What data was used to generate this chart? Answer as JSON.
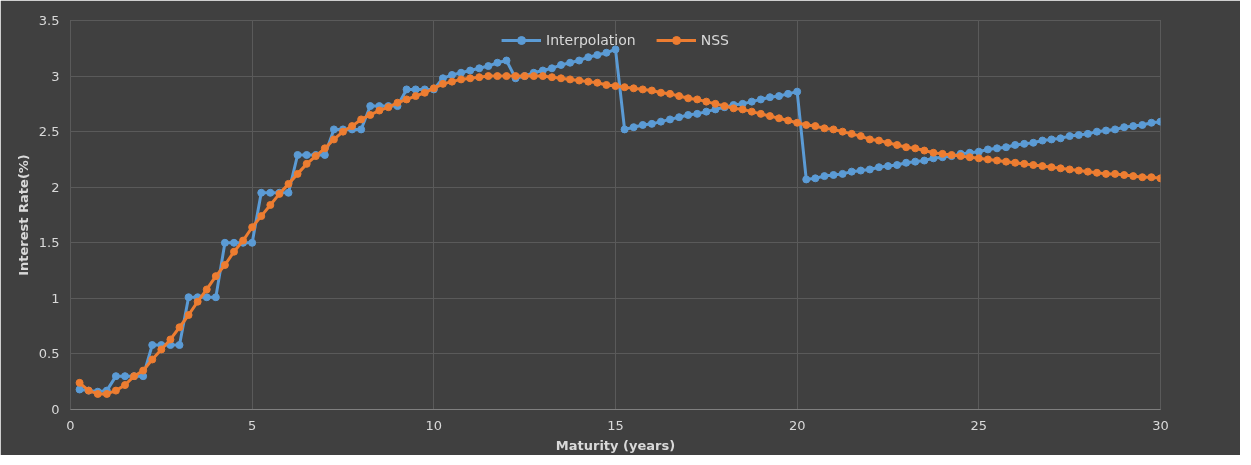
{
  "chart_data": {
    "type": "line",
    "xlabel": "Maturity (years)",
    "ylabel": "Interest Rate(%)",
    "x": [
      0.25,
      0.5,
      0.75,
      1,
      1.25,
      1.5,
      1.75,
      2,
      2.25,
      2.5,
      2.75,
      3,
      3.25,
      3.5,
      3.75,
      4,
      4.25,
      4.5,
      4.75,
      5,
      5.25,
      5.5,
      5.75,
      6,
      6.25,
      6.5,
      6.75,
      7,
      7.25,
      7.5,
      7.75,
      8,
      8.25,
      8.5,
      8.75,
      9,
      9.25,
      9.5,
      9.75,
      10,
      10.25,
      10.5,
      10.75,
      11,
      11.25,
      11.5,
      11.75,
      12,
      12.25,
      12.5,
      12.75,
      13,
      13.25,
      13.5,
      13.75,
      14,
      14.25,
      14.5,
      14.75,
      15,
      15.25,
      15.5,
      15.75,
      16,
      16.25,
      16.5,
      16.75,
      17,
      17.25,
      17.5,
      17.75,
      18,
      18.25,
      18.5,
      18.75,
      19,
      19.25,
      19.5,
      19.75,
      20,
      20.25,
      20.5,
      20.75,
      21,
      21.25,
      21.5,
      21.75,
      22,
      22.25,
      22.5,
      22.75,
      23,
      23.25,
      23.5,
      23.75,
      24,
      24.25,
      24.5,
      24.75,
      25,
      25.25,
      25.5,
      25.75,
      26,
      26.25,
      26.5,
      26.75,
      27,
      27.25,
      27.5,
      27.75,
      28,
      28.25,
      28.5,
      28.75,
      29,
      29.25,
      29.5,
      29.75,
      30
    ],
    "series": [
      {
        "name": "Interpolation",
        "color": "#5b9bd5",
        "values": [
          0.18,
          0.17,
          0.16,
          0.17,
          0.3,
          0.3,
          0.3,
          0.3,
          0.58,
          0.58,
          0.58,
          0.58,
          1.01,
          1.01,
          1.01,
          1.01,
          1.5,
          1.5,
          1.5,
          1.5,
          1.95,
          1.95,
          1.95,
          1.95,
          2.29,
          2.29,
          2.29,
          2.29,
          2.52,
          2.52,
          2.52,
          2.52,
          2.73,
          2.73,
          2.73,
          2.73,
          2.88,
          2.88,
          2.88,
          2.88,
          2.98,
          3.01,
          3.03,
          3.05,
          3.07,
          3.09,
          3.12,
          3.14,
          2.98,
          3.0,
          3.03,
          3.05,
          3.07,
          3.1,
          3.12,
          3.14,
          3.17,
          3.19,
          3.21,
          3.24,
          2.52,
          2.54,
          2.56,
          2.57,
          2.59,
          2.61,
          2.63,
          2.65,
          2.66,
          2.68,
          2.7,
          2.72,
          2.74,
          2.75,
          2.77,
          2.79,
          2.81,
          2.82,
          2.84,
          2.86,
          2.07,
          2.08,
          2.1,
          2.11,
          2.12,
          2.14,
          2.15,
          2.16,
          2.18,
          2.19,
          2.2,
          2.22,
          2.23,
          2.24,
          2.26,
          2.27,
          2.28,
          2.3,
          2.31,
          2.32,
          2.34,
          2.35,
          2.36,
          2.38,
          2.39,
          2.4,
          2.42,
          2.43,
          2.44,
          2.46,
          2.47,
          2.48,
          2.5,
          2.51,
          2.52,
          2.54,
          2.55,
          2.56,
          2.58,
          2.59
        ]
      },
      {
        "name": "NSS",
        "color": "#ed7d31",
        "values": [
          0.24,
          0.17,
          0.14,
          0.14,
          0.17,
          0.22,
          0.3,
          0.35,
          0.45,
          0.54,
          0.63,
          0.74,
          0.85,
          0.97,
          1.08,
          1.2,
          1.3,
          1.42,
          1.52,
          1.64,
          1.74,
          1.84,
          1.94,
          2.03,
          2.12,
          2.21,
          2.28,
          2.35,
          2.43,
          2.5,
          2.55,
          2.61,
          2.65,
          2.69,
          2.72,
          2.76,
          2.79,
          2.82,
          2.85,
          2.89,
          2.93,
          2.95,
          2.97,
          2.98,
          2.99,
          3.0,
          3.0,
          3.0,
          3.0,
          3.0,
          3.0,
          3.0,
          2.99,
          2.98,
          2.97,
          2.96,
          2.95,
          2.94,
          2.92,
          2.91,
          2.9,
          2.89,
          2.88,
          2.87,
          2.85,
          2.84,
          2.82,
          2.8,
          2.79,
          2.77,
          2.75,
          2.73,
          2.71,
          2.7,
          2.68,
          2.66,
          2.64,
          2.62,
          2.6,
          2.58,
          2.56,
          2.55,
          2.53,
          2.52,
          2.5,
          2.48,
          2.46,
          2.43,
          2.42,
          2.4,
          2.38,
          2.36,
          2.35,
          2.33,
          2.31,
          2.3,
          2.29,
          2.28,
          2.27,
          2.26,
          2.25,
          2.24,
          2.23,
          2.22,
          2.21,
          2.2,
          2.19,
          2.18,
          2.17,
          2.16,
          2.15,
          2.14,
          2.13,
          2.12,
          2.12,
          2.11,
          2.1,
          2.09,
          2.09,
          2.08
        ]
      }
    ],
    "xlim": [
      0,
      30
    ],
    "xticks": [
      0,
      5,
      10,
      15,
      20,
      25,
      30
    ],
    "ylim": [
      0,
      3.5
    ],
    "yticks": [
      0,
      0.5,
      1,
      1.5,
      2,
      2.5,
      3,
      3.5
    ],
    "grid": true,
    "legend": "top",
    "marker": "circle",
    "line_style": "solid"
  }
}
